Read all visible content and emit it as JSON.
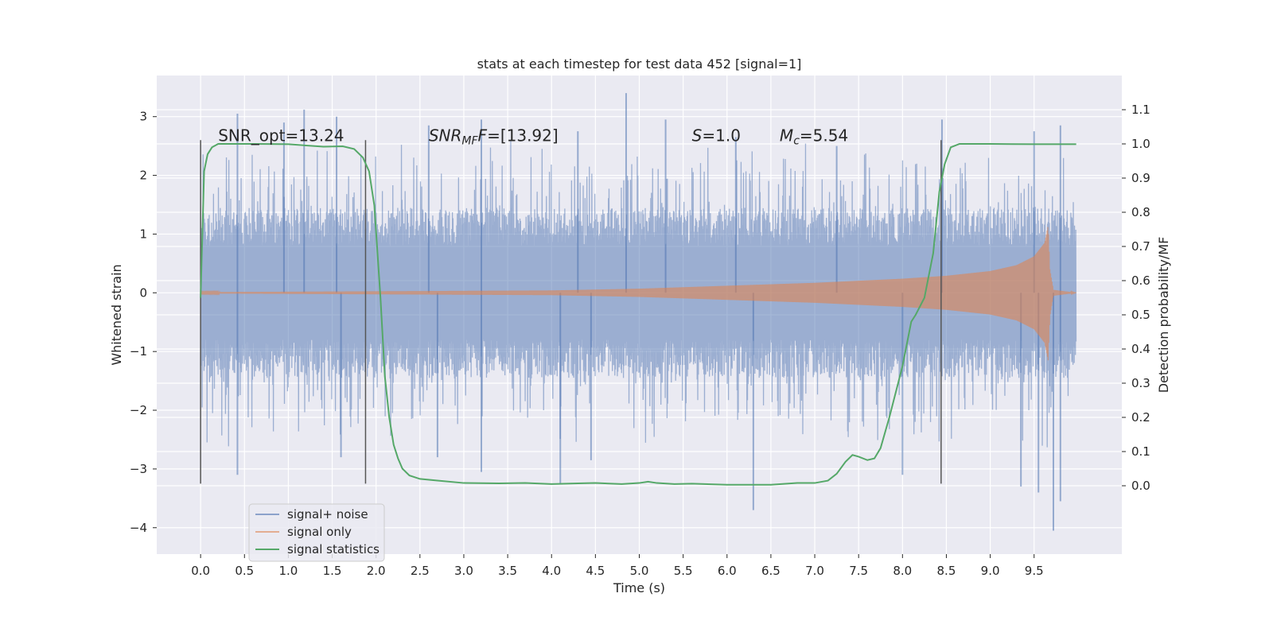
{
  "chart_data": {
    "type": "line",
    "title": "stats at each timestep for test data 452 [signal=1]",
    "xlabel": "Time (s)",
    "ylabel": "Whitened strain",
    "ylabel_right": "Detection probability/MF",
    "xlim": [
      -0.5,
      10.5
    ],
    "ylim": [
      -4.45,
      3.7
    ],
    "ylim_right": [
      -0.2,
      1.2
    ],
    "x_ticks": [
      0.0,
      0.5,
      1.0,
      1.5,
      2.0,
      2.5,
      3.0,
      3.5,
      4.0,
      4.5,
      5.0,
      5.5,
      6.0,
      6.5,
      7.0,
      7.5,
      8.0,
      8.5,
      9.0,
      9.5
    ],
    "x_tick_labels": [
      "0.0",
      "0.5",
      "1.0",
      "1.5",
      "2.0",
      "2.5",
      "3.0",
      "3.5",
      "4.0",
      "4.5",
      "5.0",
      "5.5",
      "6.0",
      "6.5",
      "7.0",
      "7.5",
      "8.0",
      "8.5",
      "9.0",
      "9.5"
    ],
    "y_ticks": [
      3,
      2,
      1,
      0,
      -1,
      -2,
      -3,
      -4
    ],
    "y_tick_labels": [
      "3",
      "2",
      "1",
      "0",
      "−1",
      "−2",
      "−3",
      "−4"
    ],
    "y_right_ticks": [
      1.1,
      1.0,
      0.9,
      0.8,
      0.7,
      0.6,
      0.5,
      0.4,
      0.3,
      0.2,
      0.1,
      0.0
    ],
    "y_right_tick_labels": [
      "1.1",
      "1.0",
      "0.9",
      "0.8",
      "0.7",
      "0.6",
      "0.5",
      "0.4",
      "0.3",
      "0.2",
      "0.1",
      "0.0"
    ],
    "grid": true,
    "legend_position": "bottom-left",
    "series": [
      {
        "name": "signal+ noise",
        "color": "#4c72b0",
        "axis": "left",
        "description_range": {
          "x": [
            0.0,
            9.98
          ],
          "core_amplitude": 1.45,
          "max": 3.4,
          "min": -4.05
        },
        "spikes": [
          {
            "x": 0.42,
            "y": 3.05
          },
          {
            "x": 0.95,
            "y": 2.9
          },
          {
            "x": 1.18,
            "y": 3.12
          },
          {
            "x": 1.55,
            "y": 3.0
          },
          {
            "x": 2.6,
            "y": 2.85
          },
          {
            "x": 3.2,
            "y": 2.95
          },
          {
            "x": 4.3,
            "y": 2.75
          },
          {
            "x": 4.85,
            "y": 3.4
          },
          {
            "x": 5.3,
            "y": 2.95
          },
          {
            "x": 6.1,
            "y": 2.65
          },
          {
            "x": 7.25,
            "y": 2.5
          },
          {
            "x": 8.45,
            "y": 2.95
          },
          {
            "x": 9.5,
            "y": 2.75
          },
          {
            "x": 9.8,
            "y": 2.85
          },
          {
            "x": 0.42,
            "y": -3.1
          },
          {
            "x": 1.6,
            "y": -2.8
          },
          {
            "x": 2.7,
            "y": -2.8
          },
          {
            "x": 3.2,
            "y": -3.05
          },
          {
            "x": 4.1,
            "y": -3.25
          },
          {
            "x": 4.45,
            "y": -2.85
          },
          {
            "x": 6.3,
            "y": -3.7
          },
          {
            "x": 8.0,
            "y": -3.1
          },
          {
            "x": 9.35,
            "y": -3.3
          },
          {
            "x": 9.55,
            "y": -3.4
          },
          {
            "x": 9.72,
            "y": -4.05
          },
          {
            "x": 9.8,
            "y": -3.55
          }
        ]
      },
      {
        "name": "signal only",
        "color": "#dd8452",
        "axis": "left",
        "envelope": [
          {
            "x": 0.0,
            "a": 0.01
          },
          {
            "x": 4.0,
            "a": 0.04
          },
          {
            "x": 5.0,
            "a": 0.07
          },
          {
            "x": 6.0,
            "a": 0.12
          },
          {
            "x": 7.0,
            "a": 0.17
          },
          {
            "x": 8.0,
            "a": 0.24
          },
          {
            "x": 8.5,
            "a": 0.29
          },
          {
            "x": 9.0,
            "a": 0.37
          },
          {
            "x": 9.3,
            "a": 0.47
          },
          {
            "x": 9.5,
            "a": 0.62
          },
          {
            "x": 9.62,
            "a": 0.85
          },
          {
            "x": 9.66,
            "a": 1.15
          },
          {
            "x": 9.68,
            "a": 0.4
          },
          {
            "x": 9.72,
            "a": 0.05
          },
          {
            "x": 9.98,
            "a": 0.0
          }
        ]
      },
      {
        "name": "signal statistics",
        "color": "#55a868",
        "axis": "right",
        "x": [
          0.0,
          0.04,
          0.08,
          0.13,
          0.2,
          0.35,
          0.6,
          1.0,
          1.4,
          1.62,
          1.75,
          1.85,
          1.92,
          1.98,
          2.05,
          2.1,
          2.15,
          2.2,
          2.25,
          2.3,
          2.38,
          2.5,
          2.7,
          3.0,
          3.4,
          3.7,
          4.0,
          4.3,
          4.5,
          4.8,
          5.0,
          5.1,
          5.2,
          5.4,
          5.6,
          6.0,
          6.5,
          6.8,
          7.0,
          7.15,
          7.25,
          7.35,
          7.43,
          7.5,
          7.6,
          7.68,
          7.75,
          7.85,
          8.0,
          8.1,
          8.15,
          8.25,
          8.35,
          8.42,
          8.48,
          8.55,
          8.65,
          9.0,
          9.5,
          9.98
        ],
        "values": [
          0.55,
          0.92,
          0.97,
          0.99,
          1.0,
          1.0,
          1.0,
          0.999,
          0.992,
          0.993,
          0.985,
          0.96,
          0.92,
          0.82,
          0.55,
          0.32,
          0.2,
          0.12,
          0.08,
          0.05,
          0.03,
          0.02,
          0.015,
          0.008,
          0.007,
          0.008,
          0.005,
          0.007,
          0.008,
          0.005,
          0.008,
          0.012,
          0.008,
          0.005,
          0.006,
          0.003,
          0.003,
          0.008,
          0.008,
          0.015,
          0.035,
          0.07,
          0.09,
          0.085,
          0.075,
          0.08,
          0.11,
          0.2,
          0.35,
          0.48,
          0.5,
          0.55,
          0.68,
          0.86,
          0.94,
          0.99,
          1.0,
          1.0,
          0.999,
          0.999
        ]
      }
    ],
    "vertical_lines": [
      {
        "x": 0.0,
        "y_from": -3.25,
        "y_to": 2.6
      },
      {
        "x": 1.88,
        "y_from": -3.25,
        "y_to": 2.6
      },
      {
        "x": 8.44,
        "y_from": -3.25,
        "y_to": 2.6
      }
    ],
    "annotations": [
      {
        "text": "SNR_opt=13.24",
        "x": 0.2,
        "y": 2.58
      },
      {
        "text_main": "SNR",
        "text_sub": "MF",
        "text_rest": "F=[13.92]",
        "x": 2.6,
        "y": 2.58,
        "italic": true
      },
      {
        "text_main": "S",
        "text_rest": "=1.0",
        "x": 5.6,
        "y": 2.58,
        "italic": true
      },
      {
        "text_main": "M",
        "text_sub": "c",
        "text_rest": "=5.54",
        "x": 6.6,
        "y": 2.58,
        "italic": true
      }
    ]
  }
}
